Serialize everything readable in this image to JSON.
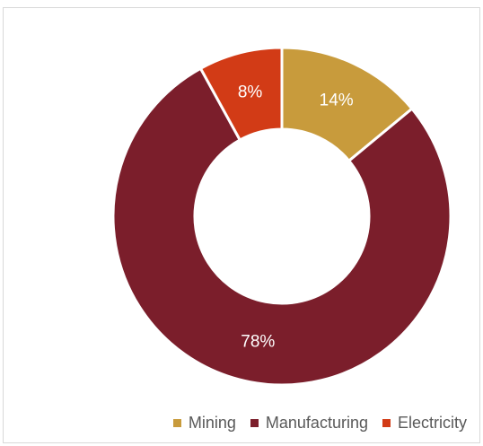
{
  "chart_data": {
    "type": "pie",
    "donut": true,
    "categories": [
      "Mining",
      "Manufacturing",
      "Electricity"
    ],
    "values": [
      14,
      78,
      8
    ],
    "labels": [
      "14%",
      "78%",
      "8%"
    ],
    "colors": [
      "#C89B3C",
      "#7B1E2B",
      "#D23B16"
    ],
    "legend_position": "bottom-right",
    "start_angle_deg": 0,
    "direction": "clockwise"
  }
}
